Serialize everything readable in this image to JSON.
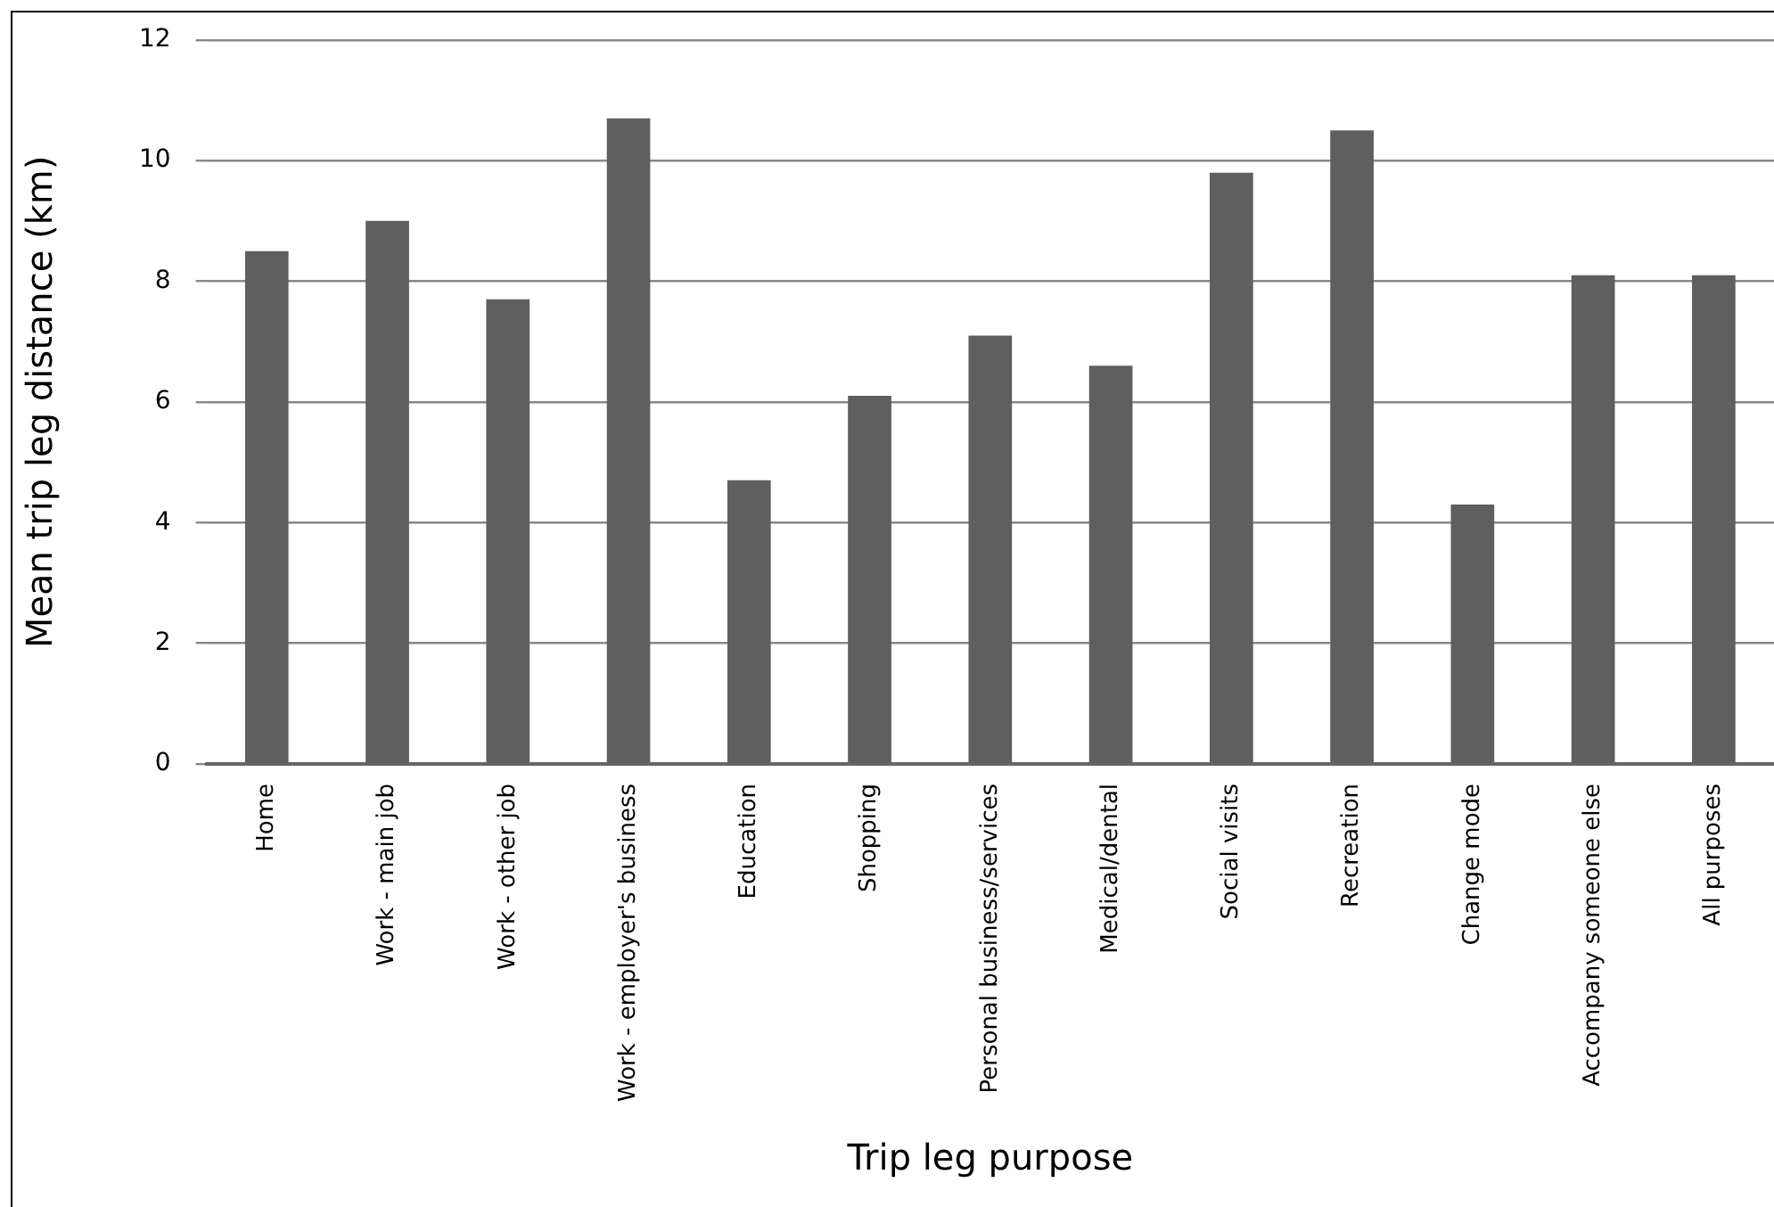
{
  "chart_data": {
    "type": "bar",
    "xlabel": "Trip leg purpose",
    "ylabel": "Mean trip leg distance (km)",
    "categories": [
      "Home",
      "Work - main job",
      "Work - other job",
      "Work - employer's business",
      "Education",
      "Shopping",
      "Personal business/services",
      "Medical/dental",
      "Social visits",
      "Recreation",
      "Change mode",
      "Accompany someone else",
      "All purposes"
    ],
    "values": [
      8.5,
      9.0,
      7.7,
      10.7,
      4.7,
      6.1,
      7.1,
      6.6,
      9.8,
      10.5,
      4.3,
      8.1,
      8.1
    ],
    "color": "#5f5f5f",
    "ylim": [
      0,
      12
    ],
    "yticks": [
      0,
      2,
      4,
      6,
      8,
      10,
      12
    ],
    "grid": "y",
    "legend": false
  }
}
